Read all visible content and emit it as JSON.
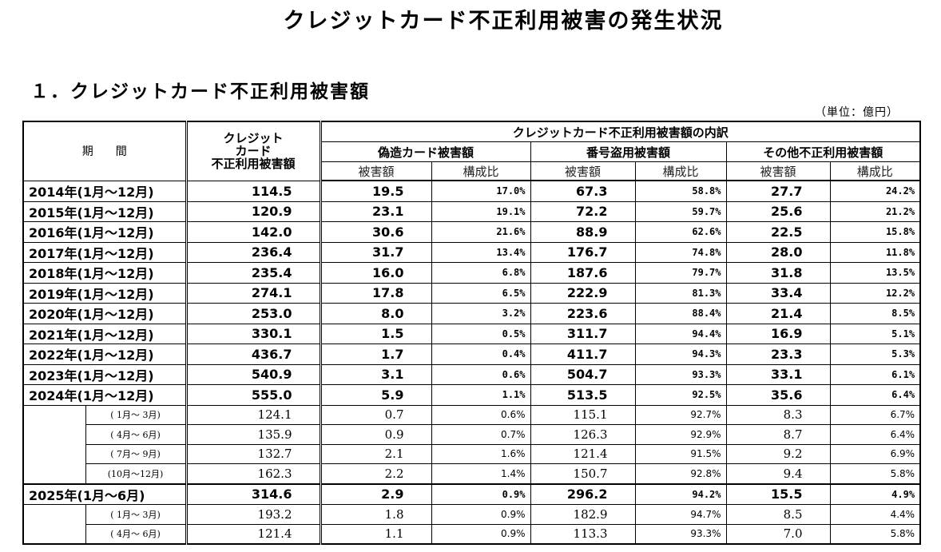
{
  "title": "クレジットカード不正利用被害の発生状況",
  "section_title": "１．クレジットカード不正利用被害額",
  "unit_note": "（単位：億円）",
  "headers": {
    "period": "期　　間",
    "total_line1": "クレジット",
    "total_line2": "カード",
    "total_line3": "不正利用被害額",
    "breakdown": "クレジットカード不正利用被害額の内訳",
    "forgery": "偽造カード被害額",
    "number_theft": "番号盗用被害額",
    "other": "その他不正利用被害額",
    "amount": "被害額",
    "ratio": "構成比"
  },
  "rows": [
    {
      "type": "year",
      "period": "2014年(1月～12月)",
      "total": "114.5",
      "forgery": "19.5",
      "forgery_pct": "17.0%",
      "theft": "67.3",
      "theft_pct": "58.8%",
      "other": "27.7",
      "other_pct": "24.2%"
    },
    {
      "type": "year",
      "period": "2015年(1月～12月)",
      "total": "120.9",
      "forgery": "23.1",
      "forgery_pct": "19.1%",
      "theft": "72.2",
      "theft_pct": "59.7%",
      "other": "25.6",
      "other_pct": "21.2%"
    },
    {
      "type": "year",
      "period": "2016年(1月～12月)",
      "total": "142.0",
      "forgery": "30.6",
      "forgery_pct": "21.6%",
      "theft": "88.9",
      "theft_pct": "62.6%",
      "other": "22.5",
      "other_pct": "15.8%"
    },
    {
      "type": "year",
      "period": "2017年(1月～12月)",
      "total": "236.4",
      "forgery": "31.7",
      "forgery_pct": "13.4%",
      "theft": "176.7",
      "theft_pct": "74.8%",
      "other": "28.0",
      "other_pct": "11.8%"
    },
    {
      "type": "year",
      "period": "2018年(1月～12月)",
      "total": "235.4",
      "forgery": "16.0",
      "forgery_pct": "6.8%",
      "theft": "187.6",
      "theft_pct": "79.7%",
      "other": "31.8",
      "other_pct": "13.5%"
    },
    {
      "type": "year",
      "period": "2019年(1月～12月)",
      "total": "274.1",
      "forgery": "17.8",
      "forgery_pct": "6.5%",
      "theft": "222.9",
      "theft_pct": "81.3%",
      "other": "33.4",
      "other_pct": "12.2%"
    },
    {
      "type": "year",
      "period": "2020年(1月～12月)",
      "total": "253.0",
      "forgery": "8.0",
      "forgery_pct": "3.2%",
      "theft": "223.6",
      "theft_pct": "88.4%",
      "other": "21.4",
      "other_pct": "8.5%"
    },
    {
      "type": "year",
      "period": "2021年(1月～12月)",
      "total": "330.1",
      "forgery": "1.5",
      "forgery_pct": "0.5%",
      "theft": "311.7",
      "theft_pct": "94.4%",
      "other": "16.9",
      "other_pct": "5.1%"
    },
    {
      "type": "year",
      "period": "2022年(1月～12月)",
      "total": "436.7",
      "forgery": "1.7",
      "forgery_pct": "0.4%",
      "theft": "411.7",
      "theft_pct": "94.3%",
      "other": "23.3",
      "other_pct": "5.3%"
    },
    {
      "type": "year",
      "period": "2023年(1月～12月)",
      "total": "540.9",
      "forgery": "3.1",
      "forgery_pct": "0.6%",
      "theft": "504.7",
      "theft_pct": "93.3%",
      "other": "33.1",
      "other_pct": "6.1%"
    },
    {
      "type": "year",
      "period": "2024年(1月～12月)",
      "total": "555.0",
      "forgery": "5.9",
      "forgery_pct": "1.1%",
      "theft": "513.5",
      "theft_pct": "92.5%",
      "other": "35.6",
      "other_pct": "6.4%"
    },
    {
      "type": "quarter",
      "period": "( 1月～ 3月)",
      "total": "124.1",
      "forgery": "0.7",
      "forgery_pct": "0.6%",
      "theft": "115.1",
      "theft_pct": "92.7%",
      "other": "8.3",
      "other_pct": "6.7%"
    },
    {
      "type": "quarter",
      "period": "( 4月～ 6月)",
      "total": "135.9",
      "forgery": "0.9",
      "forgery_pct": "0.7%",
      "theft": "126.3",
      "theft_pct": "92.9%",
      "other": "8.7",
      "other_pct": "6.4%"
    },
    {
      "type": "quarter",
      "period": "( 7月～ 9月)",
      "total": "132.7",
      "forgery": "2.1",
      "forgery_pct": "1.6%",
      "theft": "121.4",
      "theft_pct": "91.5%",
      "other": "9.2",
      "other_pct": "6.9%"
    },
    {
      "type": "quarter",
      "period": "(10月～12月)",
      "total": "162.3",
      "forgery": "2.2",
      "forgery_pct": "1.4%",
      "theft": "150.7",
      "theft_pct": "92.8%",
      "other": "9.4",
      "other_pct": "5.8%"
    },
    {
      "type": "year",
      "period": "2025年(1月～6月)",
      "total": "314.6",
      "forgery": "2.9",
      "forgery_pct": "0.9%",
      "theft": "296.2",
      "theft_pct": "94.2%",
      "other": "15.5",
      "other_pct": "4.9%"
    },
    {
      "type": "quarter",
      "period": "( 1月～ 3月)",
      "total": "193.2",
      "forgery": "1.8",
      "forgery_pct": "0.9%",
      "theft": "182.9",
      "theft_pct": "94.7%",
      "other": "8.5",
      "other_pct": "4.4%"
    },
    {
      "type": "quarter",
      "period": "( 4月～ 6月)",
      "total": "121.4",
      "forgery": "1.1",
      "forgery_pct": "0.9%",
      "theft": "113.3",
      "theft_pct": "93.3%",
      "other": "7.0",
      "other_pct": "5.8%"
    }
  ]
}
